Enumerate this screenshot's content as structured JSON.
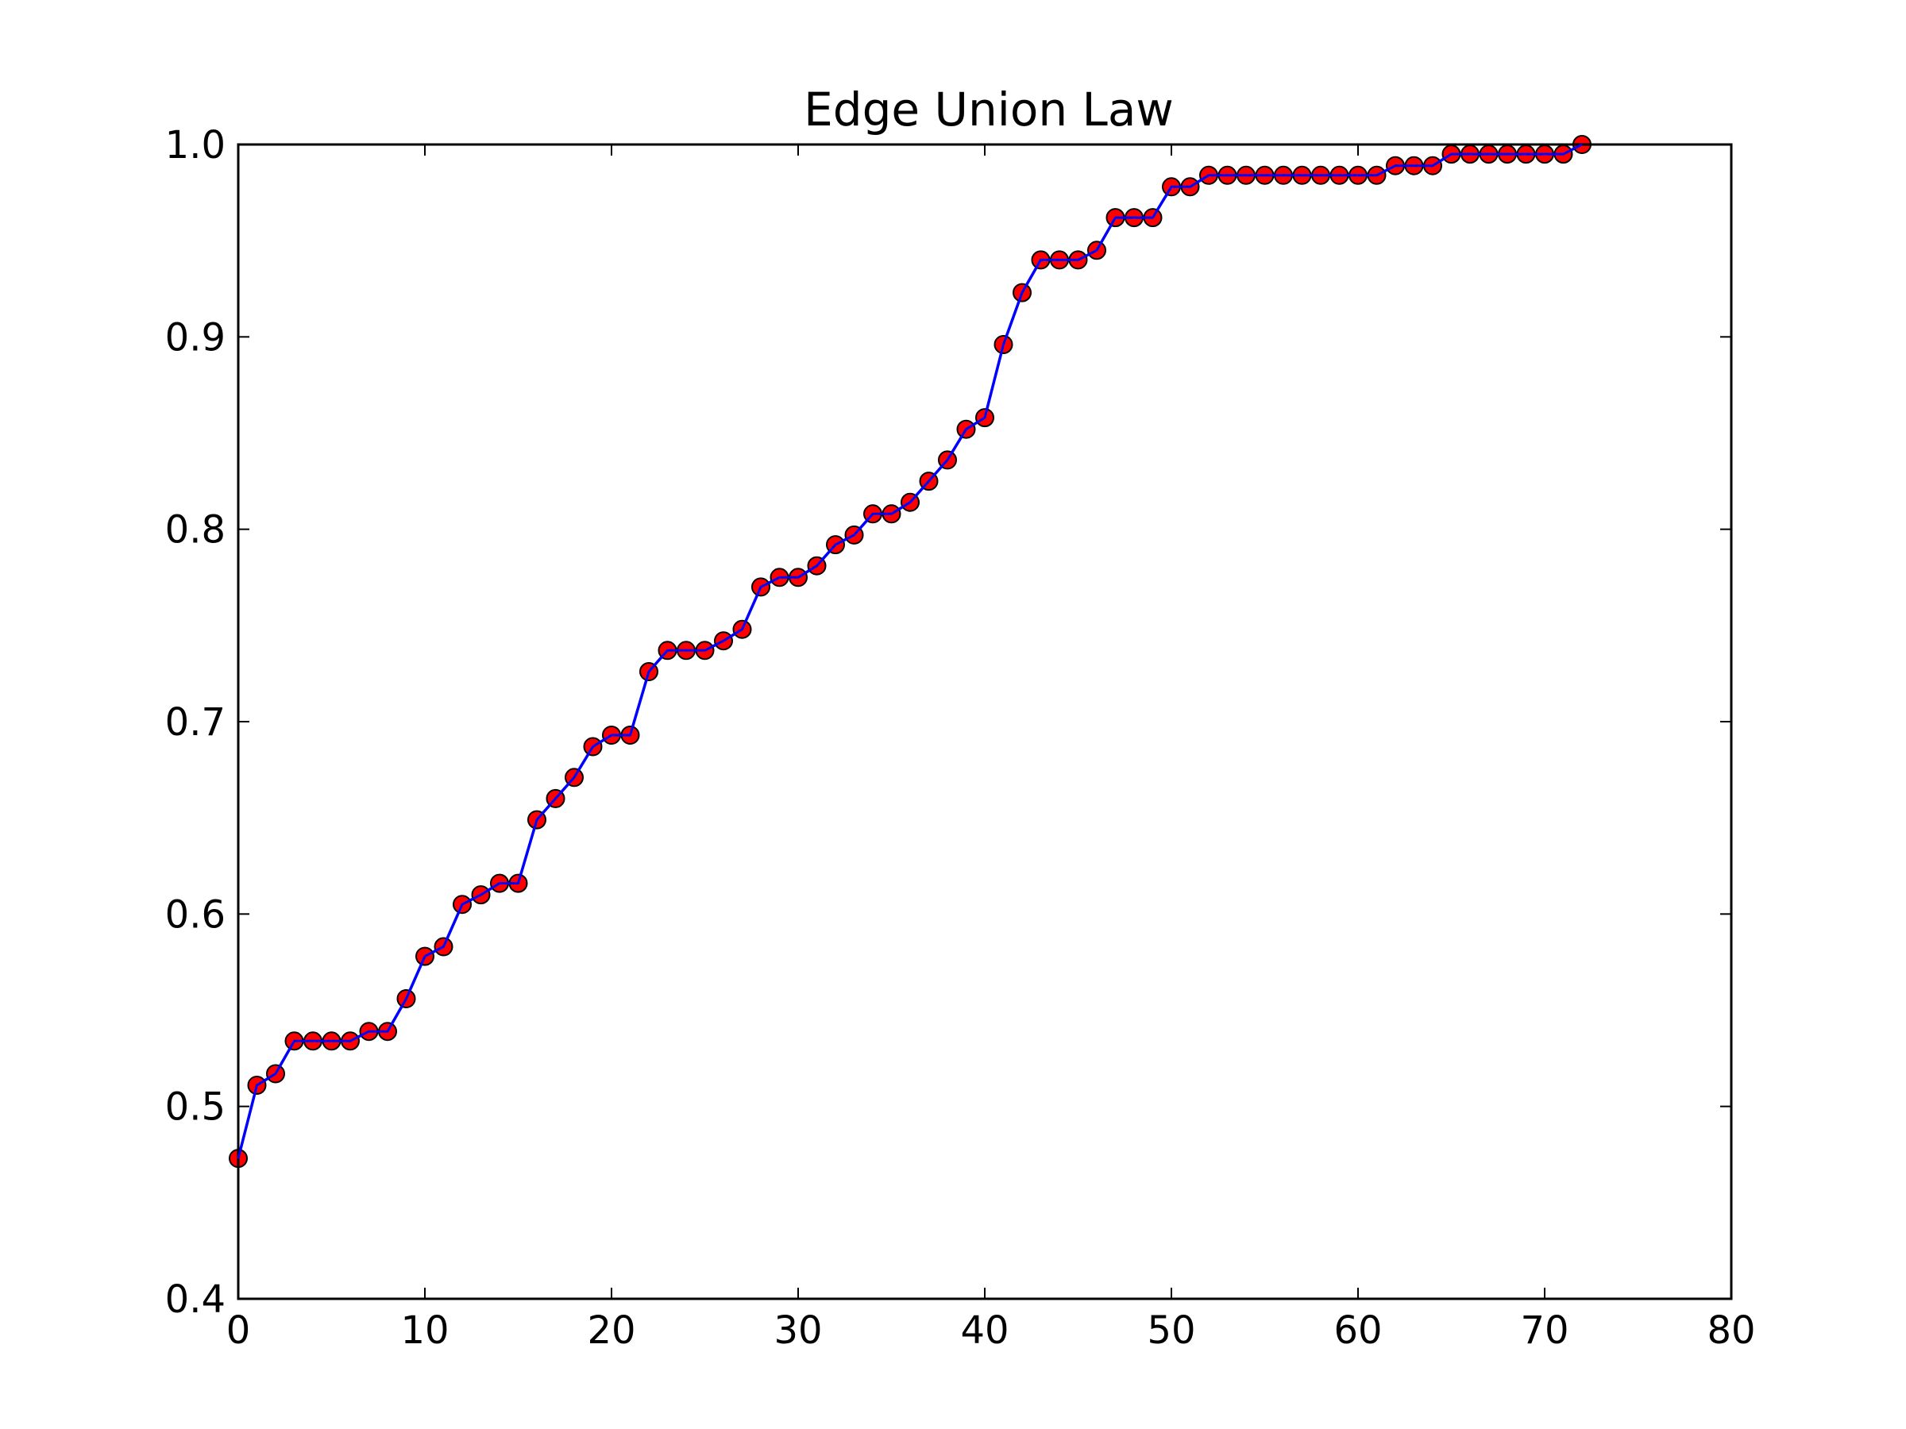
{
  "chart_data": {
    "type": "line",
    "title": "Edge Union Law",
    "xlabel": "",
    "ylabel": "",
    "xlim": [
      0,
      80
    ],
    "ylim": [
      0.4,
      1.0
    ],
    "x_ticks": [
      "0",
      "10",
      "20",
      "30",
      "40",
      "50",
      "60",
      "70",
      "80"
    ],
    "y_ticks": [
      "0.4",
      "0.5",
      "0.6",
      "0.7",
      "0.8",
      "0.9",
      "1.0"
    ],
    "grid": false,
    "legend": "none",
    "colors": {
      "line": "#0000ff",
      "marker_fill": "#ff0000",
      "marker_edge": "#000000"
    },
    "series": [
      {
        "x": [
          0,
          1,
          2,
          3,
          4,
          5,
          6,
          7,
          8,
          9,
          10,
          11,
          12,
          13,
          14,
          15,
          16,
          17,
          18,
          19,
          20,
          21,
          22,
          23,
          24,
          25,
          26,
          27,
          28,
          29,
          30,
          31,
          32,
          33,
          34,
          35,
          36,
          37,
          38,
          39,
          40,
          41,
          42,
          43,
          44,
          45,
          46,
          47,
          48,
          49,
          50,
          51,
          52,
          53,
          54,
          55,
          56,
          57,
          58,
          59,
          60,
          61,
          62,
          63,
          64,
          65,
          66,
          67,
          68,
          69,
          70,
          71,
          72
        ],
        "y": [
          0.473,
          0.511,
          0.517,
          0.534,
          0.534,
          0.534,
          0.534,
          0.539,
          0.539,
          0.556,
          0.578,
          0.583,
          0.605,
          0.61,
          0.616,
          0.616,
          0.649,
          0.66,
          0.671,
          0.687,
          0.693,
          0.693,
          0.726,
          0.737,
          0.737,
          0.737,
          0.742,
          0.748,
          0.77,
          0.775,
          0.775,
          0.781,
          0.792,
          0.797,
          0.808,
          0.808,
          0.814,
          0.825,
          0.836,
          0.852,
          0.858,
          0.896,
          0.923,
          0.94,
          0.94,
          0.94,
          0.945,
          0.962,
          0.962,
          0.962,
          0.978,
          0.978,
          0.984,
          0.984,
          0.984,
          0.984,
          0.984,
          0.984,
          0.984,
          0.984,
          0.984,
          0.984,
          0.989,
          0.989,
          0.989,
          0.995,
          0.995,
          0.995,
          0.995,
          0.995,
          0.995,
          0.995,
          1.0
        ]
      }
    ]
  }
}
